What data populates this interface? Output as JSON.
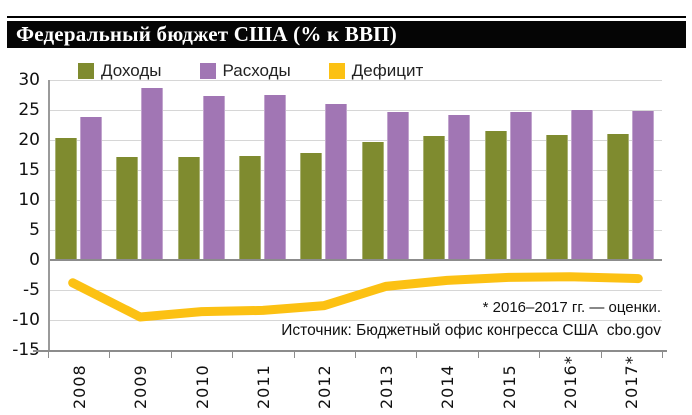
{
  "title": "Федеральный бюджет США (% к ВВП)",
  "notes": {
    "estimate_note": "* 2016–2017 гг. — оценки.",
    "source_note": "Источник: Бюджетный офис конгресса США  cbo.gov"
  },
  "colors": {
    "revenues": "#7f8b2f",
    "expenditures": "#a176b4",
    "deficit": "#fcc113",
    "title_bar": "#050505",
    "grid": "#d6d6d6",
    "axis": "#8c8c8c"
  },
  "chart_data": {
    "type": "bar",
    "categories": [
      "2008",
      "2009",
      "2010",
      "2011",
      "2012",
      "2013",
      "2014",
      "2015",
      "2016*",
      "2017*"
    ],
    "series": [
      {
        "key": "revenues",
        "name": "Доходы",
        "type": "bar",
        "color": "#7f8b2f",
        "values": [
          20.3,
          17.2,
          17.2,
          17.4,
          17.8,
          19.6,
          20.6,
          21.5,
          20.9,
          21.0
        ]
      },
      {
        "key": "expenditures",
        "name": "Расходы",
        "type": "bar",
        "color": "#a176b4",
        "values": [
          23.8,
          28.6,
          27.4,
          27.5,
          26.0,
          24.7,
          24.1,
          24.6,
          25.0,
          24.9
        ]
      },
      {
        "key": "deficit",
        "name": "Дефицит",
        "type": "line",
        "color": "#fcc113",
        "values": [
          -3.8,
          -9.5,
          -8.6,
          -8.4,
          -7.6,
          -4.4,
          -3.4,
          -2.9,
          -2.8,
          -3.1
        ]
      }
    ],
    "title": "Федеральный бюджет США (% к ВВП)",
    "xlabel": "",
    "ylabel": "",
    "ylim": [
      -15,
      30
    ],
    "ytick_step": 5,
    "grid": true,
    "legend_position": "top"
  }
}
